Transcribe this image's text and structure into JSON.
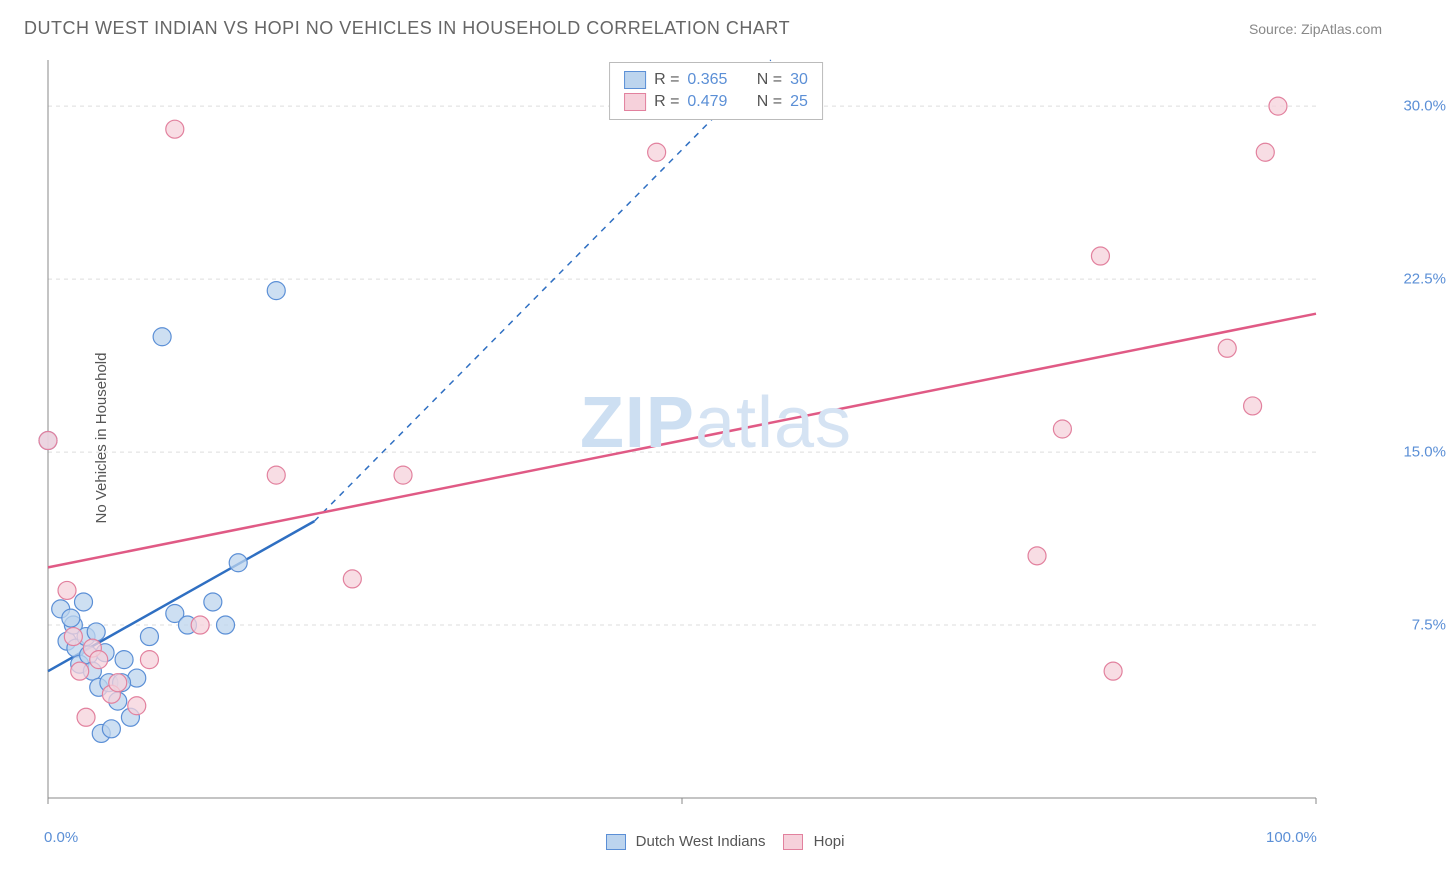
{
  "header": {
    "title": "DUTCH WEST INDIAN VS HOPI NO VEHICLES IN HOUSEHOLD CORRELATION CHART",
    "source": "Source: ZipAtlas.com"
  },
  "watermark": {
    "left": "ZIP",
    "right": "atlas"
  },
  "chart": {
    "type": "scatter",
    "background_color": "#ffffff",
    "grid_color": "#dddddd",
    "axis_color": "#888888",
    "tick_color": "#5b8fd6",
    "ylabel": "No Vehicles in Household",
    "ylabel_color": "#555555",
    "xlim": [
      0,
      100
    ],
    "ylim": [
      0,
      32
    ],
    "yticks": [
      7.5,
      15.0,
      22.5,
      30.0
    ],
    "ytick_labels": [
      "7.5%",
      "15.0%",
      "22.5%",
      "30.0%"
    ],
    "xtick_labels": {
      "left": "0.0%",
      "right": "100.0%"
    },
    "xaxis_ticks": [
      0,
      50,
      100
    ],
    "series": [
      {
        "name": "Dutch West Indians",
        "fill": "#bcd4ee",
        "stroke": "#5b8fd6",
        "line_color": "#2f6fc2",
        "points": [
          [
            0.0,
            15.5
          ],
          [
            1.0,
            8.2
          ],
          [
            1.5,
            6.8
          ],
          [
            2.0,
            7.5
          ],
          [
            2.2,
            6.5
          ],
          [
            2.5,
            5.8
          ],
          [
            3.0,
            7.0
          ],
          [
            3.2,
            6.2
          ],
          [
            3.5,
            5.5
          ],
          [
            3.8,
            7.2
          ],
          [
            4.0,
            4.8
          ],
          [
            4.2,
            2.8
          ],
          [
            4.8,
            5.0
          ],
          [
            5.0,
            3.0
          ],
          [
            5.5,
            4.2
          ],
          [
            6.0,
            6.0
          ],
          [
            6.5,
            3.5
          ],
          [
            7.0,
            5.2
          ],
          [
            8.0,
            7.0
          ],
          [
            9.0,
            20.0
          ],
          [
            10.0,
            8.0
          ],
          [
            11.0,
            7.5
          ],
          [
            13.0,
            8.5
          ],
          [
            14.0,
            7.5
          ],
          [
            15.0,
            10.2
          ],
          [
            18.0,
            22.0
          ],
          [
            2.8,
            8.5
          ],
          [
            1.8,
            7.8
          ],
          [
            4.5,
            6.3
          ],
          [
            5.8,
            5.0
          ]
        ],
        "trend": {
          "x1": 0,
          "y1": 5.5,
          "x2": 21,
          "y2": 12.0,
          "dashed_x2": 57,
          "dashed_y2": 32
        }
      },
      {
        "name": "Hopi",
        "fill": "#f6d1db",
        "stroke": "#e2819e",
        "line_color": "#e05a85",
        "points": [
          [
            0.0,
            15.5
          ],
          [
            1.5,
            9.0
          ],
          [
            2.0,
            7.0
          ],
          [
            2.5,
            5.5
          ],
          [
            3.0,
            3.5
          ],
          [
            3.5,
            6.5
          ],
          [
            4.0,
            6.0
          ],
          [
            5.0,
            4.5
          ],
          [
            5.5,
            5.0
          ],
          [
            7.0,
            4.0
          ],
          [
            8.0,
            6.0
          ],
          [
            10.0,
            29.0
          ],
          [
            12.0,
            7.5
          ],
          [
            18.0,
            14.0
          ],
          [
            24.0,
            9.5
          ],
          [
            28.0,
            14.0
          ],
          [
            48.0,
            28.0
          ],
          [
            78.0,
            10.5
          ],
          [
            80.0,
            16.0
          ],
          [
            83.0,
            23.5
          ],
          [
            84.0,
            5.5
          ],
          [
            93.0,
            19.5
          ],
          [
            95.0,
            17.0
          ],
          [
            97.0,
            30.0
          ],
          [
            96.0,
            28.0
          ]
        ],
        "trend": {
          "x1": 0,
          "y1": 10.0,
          "x2": 100,
          "y2": 21.0
        }
      }
    ],
    "stats_legend": [
      {
        "series": 0,
        "R": "0.365",
        "N": "30"
      },
      {
        "series": 1,
        "R": "0.479",
        "N": "25"
      }
    ],
    "marker_radius": 9,
    "marker_opacity": 0.75,
    "label_fontsize": 15,
    "title_fontsize": 18
  }
}
